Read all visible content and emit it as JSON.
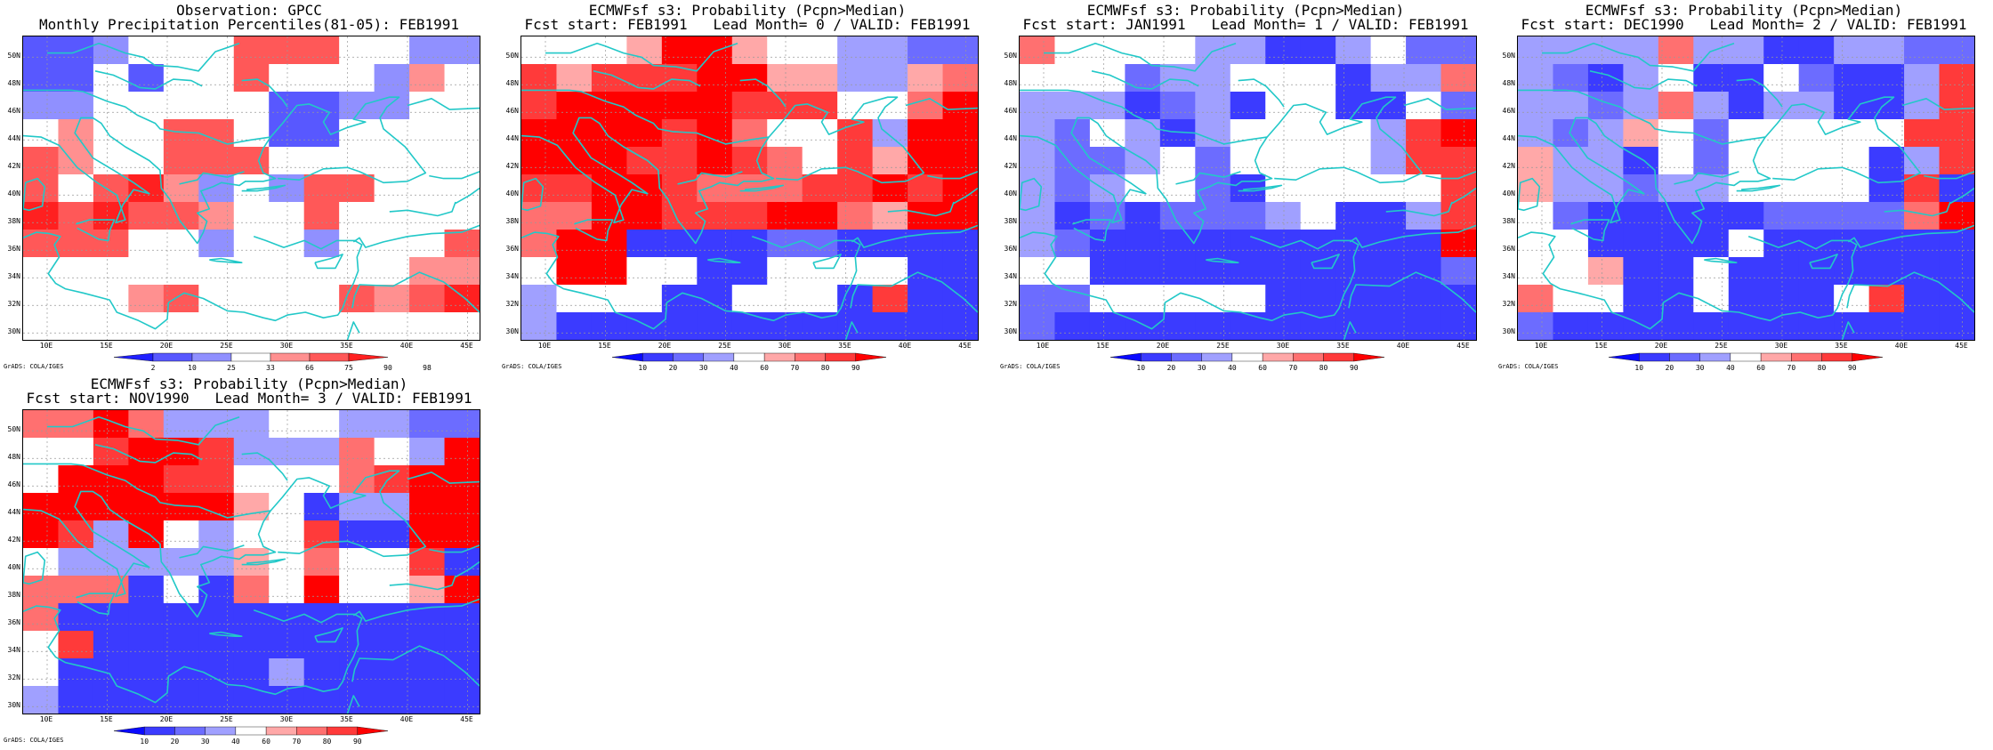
{
  "colors": {
    "obs": [
      "#2020ff",
      "#5858ff",
      "#9090ff",
      "#ffffff",
      "#ff9090",
      "#ff5858",
      "#ff2020"
    ],
    "fcst": [
      "#0a0aff",
      "#3b3bff",
      "#6c6cff",
      "#a0a0ff",
      "#ffffff",
      "#ffa8a8",
      "#ff7070",
      "#ff3a3a",
      "#ff0000"
    ],
    "coast": "#22c8c8"
  },
  "lat_labels": [
    "30N",
    "32N",
    "34N",
    "36N",
    "38N",
    "40N",
    "42N",
    "44N",
    "46N",
    "48N",
    "50N"
  ],
  "lon_labels": [
    "10E",
    "15E",
    "20E",
    "25E",
    "30E",
    "35E",
    "40E",
    "45E"
  ],
  "credit": "GrADS: COLA/IGES",
  "panels": [
    {
      "title1": "Observation: GPCC",
      "title2": "Monthly Precipitation Percentiles(81-05): FEB1991",
      "legend": [
        "2",
        "10",
        "25",
        "33",
        "66",
        "75",
        "90",
        "98"
      ],
      "palette": "obs",
      "grid": [
        "1123335553322",
        "1131335333243",
        "2233333112233",
        "3433553113333",
        "5433555333333",
        "5356423255333",
        "6565543353333",
        "5553323323335",
        "3333333333344",
        "3334533335456",
        "3333333333333"
      ]
    },
    {
      "title1": "ECMWFsf s3: Probability (Pcpn>Median)",
      "title2": "Fcst start: FEB1991   Lead Month= 0 / VALID: FEB1991",
      "legend": [
        "10",
        "20",
        "30",
        "40",
        "60",
        "70",
        "80",
        "90"
      ],
      "palette": "fcst",
      "grid": [
        "4445885443322",
        "7577788553356",
        "7888887774468",
        "8888786447388",
        "8887787647588",
        "7788766677878",
        "6688777886588",
        "6881111221111",
        "4884411444411",
        "3444114441711",
        "3111111111111"
      ]
    },
    {
      "title1": "ECMWFsf s3: Probability (Pcpn>Median)",
      "title2": "Fcst start: JAN1991   Lead Month= 1 / VALID: FEB1991",
      "legend": [
        "10",
        "20",
        "30",
        "40",
        "60",
        "70",
        "80",
        "90"
      ],
      "palette": "fcst",
      "grid": [
        "6444433113422",
        "4442334441336",
        "3331231441142",
        "3243134444378",
        "3223424444377",
        "3234421444447",
        "3121222341137",
        "3211111111118",
        "4411111111112",
        "2244444111111",
        "2111111111111"
      ]
    },
    {
      "title1": "ECMWFsf s3: Probability (Pcpn>Median)",
      "title2": "Fcst start: DEC1990   Lead Month= 2 / VALID: FEB1991",
      "legend": [
        "10",
        "20",
        "30",
        "40",
        "60",
        "70",
        "80",
        "90"
      ],
      "palette": "fcst",
      "grid": [
        "3333633113322",
        "3213411421137",
        "3323631331137",
        "3235424444477",
        "5331424444137",
        "5332334444171",
        "4211111222268",
        "4411114111111",
        "4451141111111",
        "6441141114711",
        "2111111111111"
      ]
    },
    {
      "title1": "ECMWFsf s3: Probability (Pcpn>Median)",
      "title2": "Fcst start: NOV1990   Lead Month= 3 / VALID: FEB1991",
      "legend": [
        "10",
        "20",
        "30",
        "40",
        "60",
        "70",
        "80",
        "90"
      ],
      "palette": "fcst",
      "grid": [
        "6686333443322",
        "4478873336438",
        "4888774446788",
        "8888885413388",
        "8738434471188",
        "4333335464471",
        "6661416484458",
        "6111111111111",
        "4711111111111",
        "4111111311111",
        "3111111111111"
      ]
    }
  ]
}
